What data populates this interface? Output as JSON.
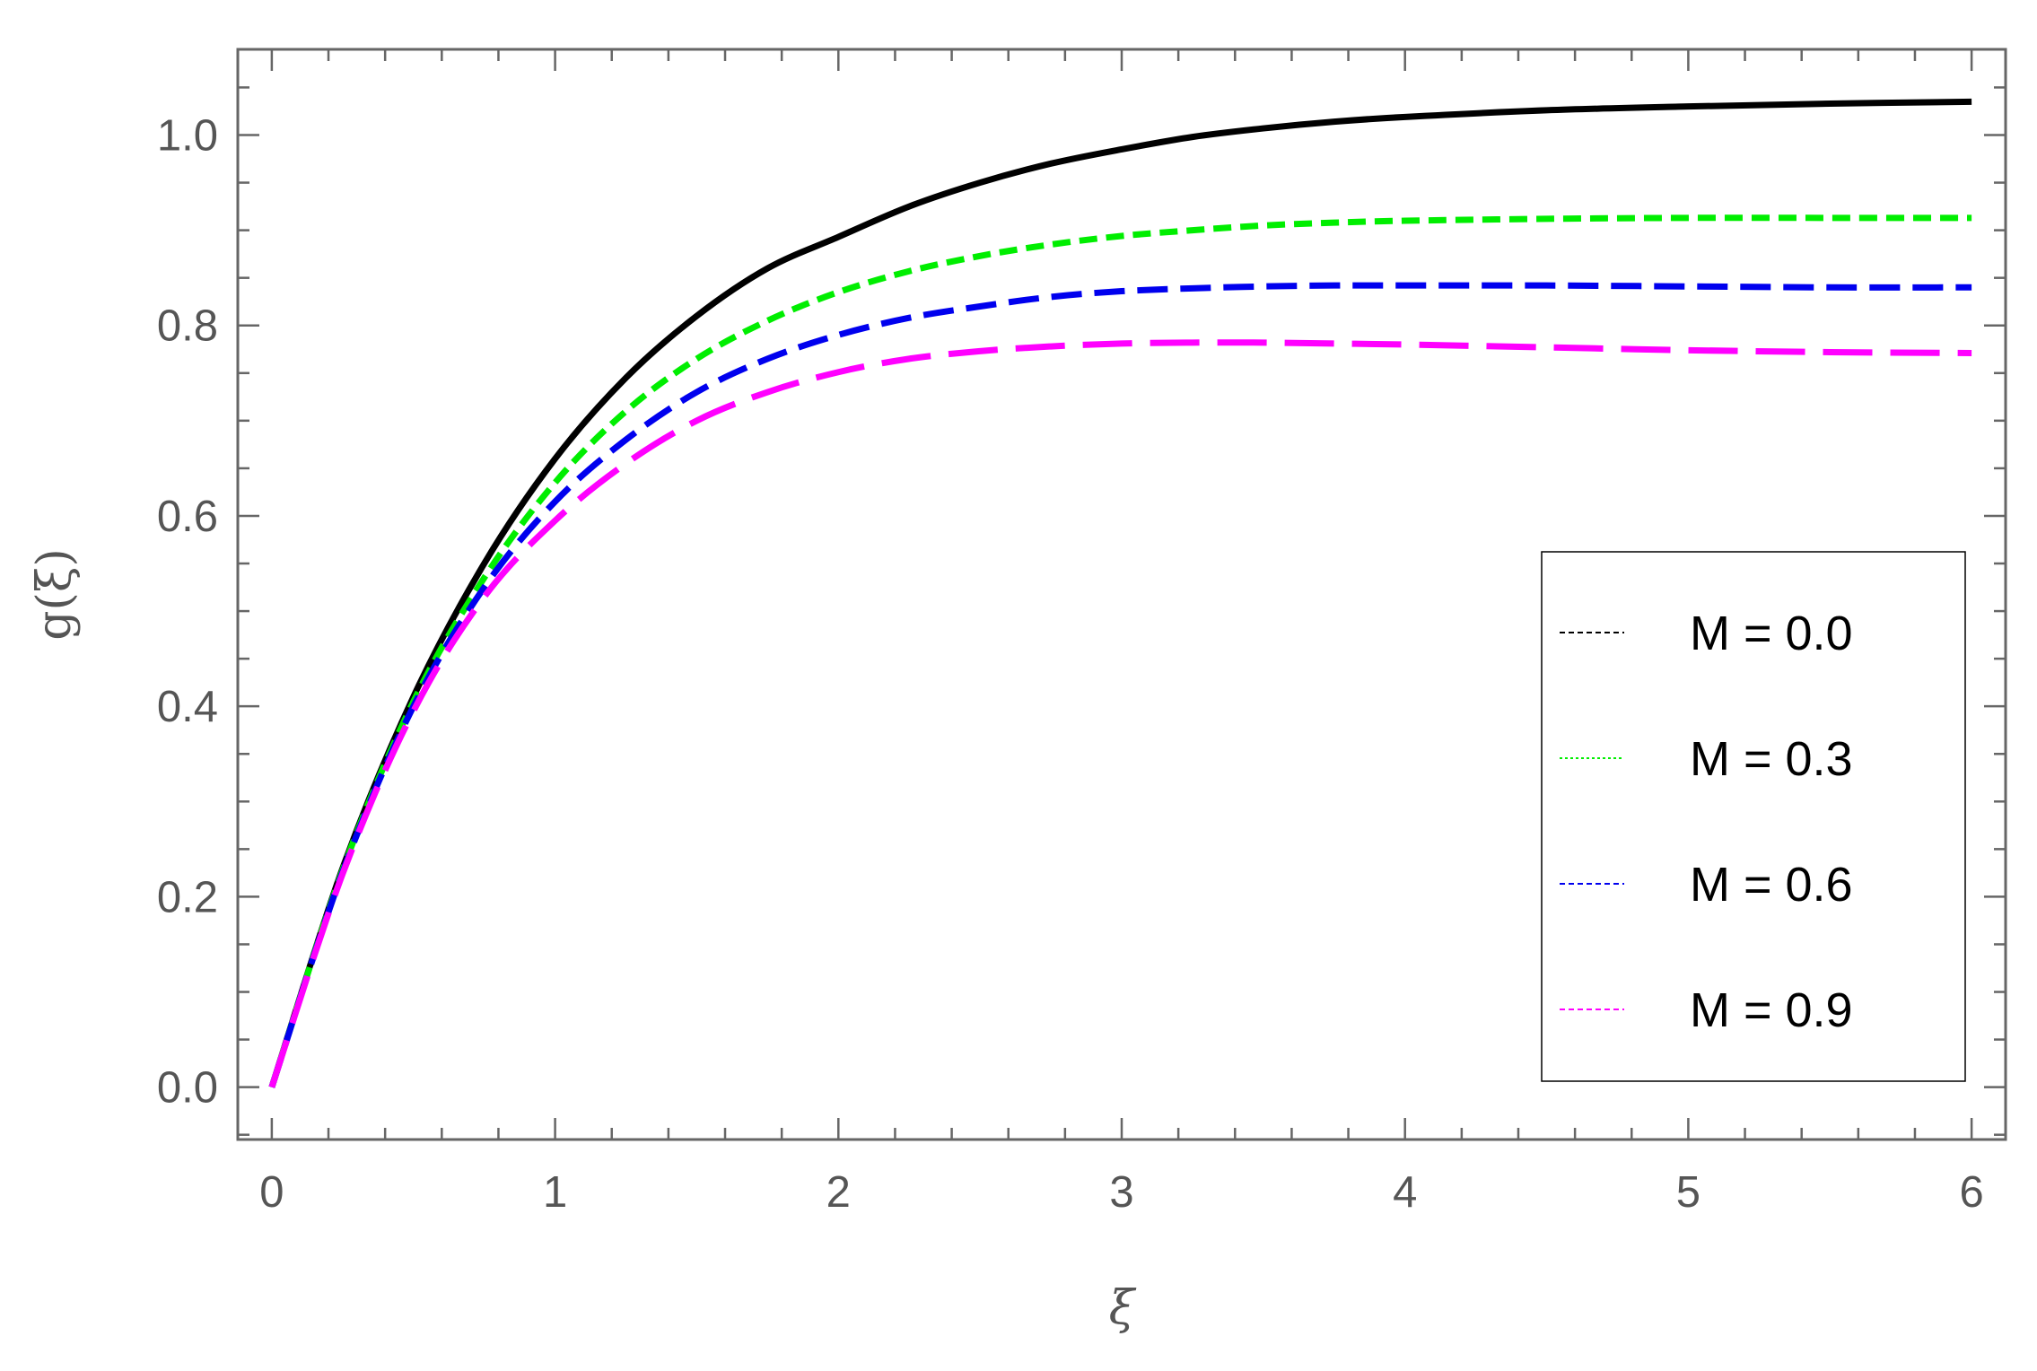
{
  "chart_data": {
    "type": "line",
    "title": "",
    "xlabel": "ξ",
    "ylabel": "g(ξ)",
    "xlim": [
      -0.12,
      6.12
    ],
    "ylim": [
      -0.055,
      1.09
    ],
    "x_ticks": [
      0,
      1,
      2,
      3,
      4,
      5,
      6
    ],
    "x_tick_labels": [
      "0",
      "1",
      "2",
      "3",
      "4",
      "5",
      "6"
    ],
    "y_ticks": [
      0.0,
      0.2,
      0.4,
      0.6,
      0.8,
      1.0
    ],
    "y_tick_labels": [
      "0.0",
      "0.2",
      "0.4",
      "0.6",
      "0.8",
      "1.0"
    ],
    "grid": false,
    "legend_position": "right",
    "x": [
      0,
      0.25,
      0.5,
      0.75,
      1.0,
      1.25,
      1.5,
      1.75,
      2.0,
      2.25,
      2.5,
      2.75,
      3.0,
      3.25,
      3.5,
      3.75,
      4.0,
      4.5,
      5.0,
      5.5,
      6.0
    ],
    "series": [
      {
        "name": "M = 0.0",
        "color": "#000000",
        "style": "solid",
        "values": [
          0.0,
          0.23,
          0.41,
          0.55,
          0.66,
          0.745,
          0.81,
          0.86,
          0.893,
          0.925,
          0.95,
          0.97,
          0.985,
          0.998,
          1.007,
          1.014,
          1.019,
          1.026,
          1.03,
          1.033,
          1.035
        ]
      },
      {
        "name": "M = 0.3",
        "color": "#00ee00",
        "style": "dash-short",
        "values": [
          0.0,
          0.228,
          0.405,
          0.535,
          0.635,
          0.71,
          0.765,
          0.805,
          0.835,
          0.857,
          0.873,
          0.885,
          0.894,
          0.9,
          0.905,
          0.908,
          0.91,
          0.912,
          0.913,
          0.913,
          0.913
        ]
      },
      {
        "name": "M = 0.6",
        "color": "#0000ee",
        "style": "dash-medium",
        "values": [
          0.0,
          0.226,
          0.4,
          0.525,
          0.615,
          0.68,
          0.73,
          0.765,
          0.79,
          0.808,
          0.82,
          0.83,
          0.836,
          0.839,
          0.841,
          0.842,
          0.842,
          0.842,
          0.841,
          0.84,
          0.84
        ]
      },
      {
        "name": "M = 0.9",
        "color": "#ff00ff",
        "style": "dash-long",
        "values": [
          0.0,
          0.224,
          0.395,
          0.515,
          0.595,
          0.655,
          0.7,
          0.73,
          0.751,
          0.765,
          0.773,
          0.778,
          0.781,
          0.782,
          0.782,
          0.781,
          0.78,
          0.777,
          0.774,
          0.772,
          0.771
        ]
      }
    ]
  }
}
